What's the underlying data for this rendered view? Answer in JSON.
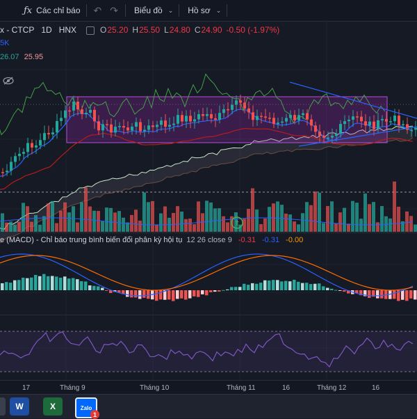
{
  "toolbar": {
    "fx_symbol": "ƒx",
    "indicators_label": "Các chỉ báo",
    "undo_symbol": "↶",
    "redo_symbol": "↷",
    "chart_label": "Biểu đồ",
    "profile_label": "Hồ sơ",
    "chevron": "⌄"
  },
  "legend": {
    "symbol_tail": "x - CTCP",
    "interval": "1D",
    "exchange": "HNX",
    "o_label": "O",
    "o_value": "25.20",
    "h_label": "H",
    "h_value": "25.50",
    "l_label": "L",
    "l_value": "24.80",
    "c_label": "C",
    "c_value": "24.90",
    "change": "-0.50 (-1.97%)",
    "line2": "5K",
    "line3_a": "26.07",
    "line3_b": "25.95"
  },
  "macd_legend": {
    "title": "e (MACD) - Chỉ báo trung bình biến đổi phân kỳ hội tụ",
    "params": "12 26 close 9",
    "v1": "-0.31",
    "v2": "-0.31",
    "v3": "-0.00"
  },
  "xaxis": {
    "labels": [
      "17",
      "Tháng 9",
      "Tháng 10",
      "Tháng 11",
      "16",
      "Tháng 12",
      "16"
    ]
  },
  "taskbar": {
    "word_letter": "W",
    "excel_letter": "X",
    "zalo_label": "Zalo",
    "zalo_badge": "1"
  },
  "colors": {
    "up": "#26a69a",
    "down": "#ef5350",
    "box": "#9c27b0",
    "background": "#161a25"
  }
}
